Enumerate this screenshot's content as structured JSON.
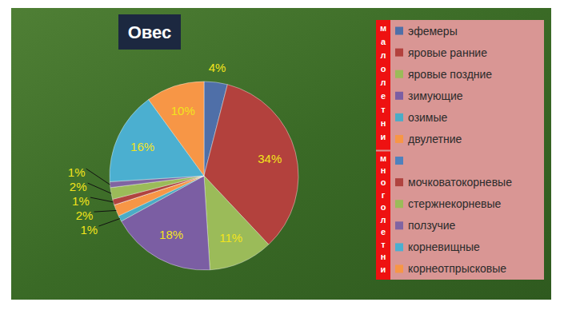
{
  "chart_data": {
    "type": "pie",
    "title": "Овес",
    "categories": [
      "эфемеры",
      "яровые ранние",
      "яровые поздние",
      "зимующие",
      "озимые",
      "двулетние",
      null,
      "мочковатокорневые",
      "стержнекорневые",
      "ползучие",
      "корневищные",
      "корнеотпрысковые"
    ],
    "values": [
      4,
      34,
      11,
      18,
      1,
      2,
      0,
      1,
      2,
      1,
      16,
      10
    ],
    "value_labels": [
      "4%",
      "34%",
      "11%",
      "18%",
      "1%",
      "2%",
      null,
      "1%",
      "2%",
      "1%",
      "16%",
      "10%"
    ],
    "colors": [
      "#4f6fa8",
      "#b3413d",
      "#9bbb59",
      "#7b5ea3",
      "#4bacc6",
      "#f79646",
      "#4f81bd",
      "#b0433f",
      "#9bbb59",
      "#8064a2",
      "#4bafd0",
      "#f79646"
    ],
    "data_labels": true,
    "legend": "right",
    "legend_groups": [
      "малолетни",
      "многолетни"
    ]
  }
}
